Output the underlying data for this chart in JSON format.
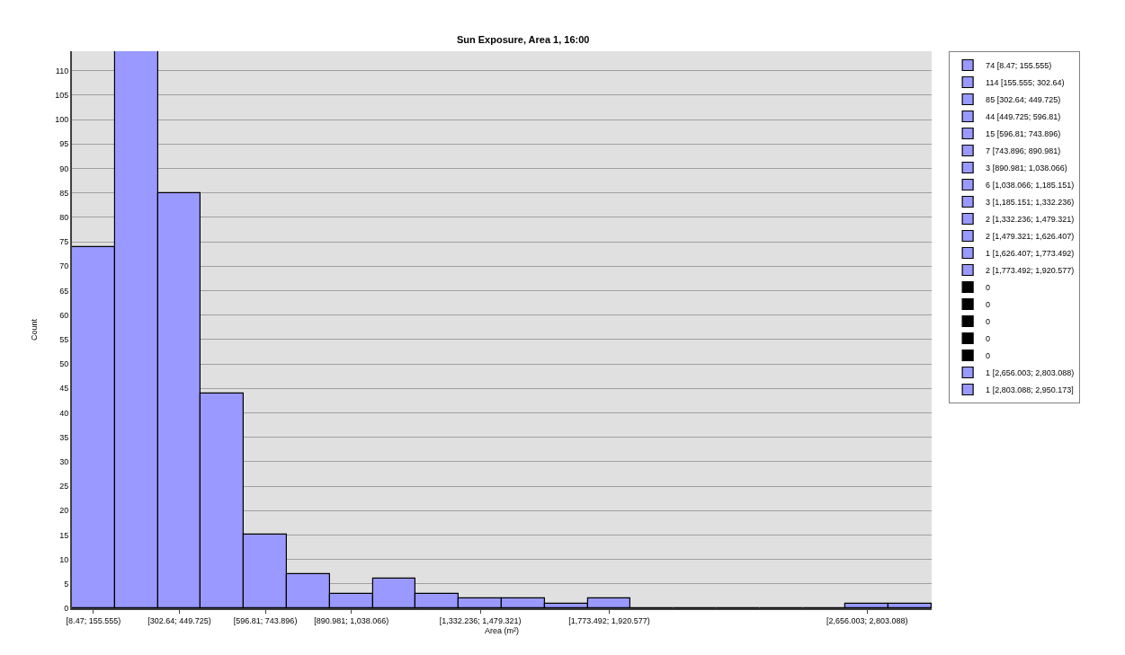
{
  "chart_data": {
    "type": "bar",
    "title": "Sun Exposure, Area 1, 16:00",
    "xlabel": "Area (m²)",
    "ylabel": "Count",
    "categories": [
      "[8.47; 155.555)",
      null,
      "[302.64; 449.725)",
      null,
      "[596.81; 743.896)",
      null,
      "[890.981; 1,038.066)",
      null,
      null,
      "[1,332.236; 1,479.321)",
      null,
      null,
      "[1,773.492; 1,920.577)",
      null,
      null,
      null,
      null,
      null,
      "[2,656.003; 2,803.088)",
      null
    ],
    "series": [
      {
        "name": "74 [8.47; 155.555)",
        "color": "#9999ff",
        "values": [
          74,
          null,
          null,
          null,
          null,
          null,
          null,
          null,
          null,
          null,
          null,
          null,
          null,
          null,
          null,
          null,
          null,
          null,
          null,
          null
        ]
      },
      {
        "name": "114 [155.555; 302.64)",
        "color": "#9999ff",
        "values": [
          null,
          114,
          null,
          null,
          null,
          null,
          null,
          null,
          null,
          null,
          null,
          null,
          null,
          null,
          null,
          null,
          null,
          null,
          null,
          null
        ]
      },
      {
        "name": "85 [302.64; 449.725)",
        "color": "#9999ff",
        "values": [
          null,
          null,
          85,
          null,
          null,
          null,
          null,
          null,
          null,
          null,
          null,
          null,
          null,
          null,
          null,
          null,
          null,
          null,
          null,
          null
        ]
      },
      {
        "name": "44 [449.725; 596.81)",
        "color": "#9999ff",
        "values": [
          null,
          null,
          null,
          44,
          null,
          null,
          null,
          null,
          null,
          null,
          null,
          null,
          null,
          null,
          null,
          null,
          null,
          null,
          null,
          null
        ]
      },
      {
        "name": "15 [596.81; 743.896)",
        "color": "#9999ff",
        "values": [
          null,
          null,
          null,
          null,
          15,
          null,
          null,
          null,
          null,
          null,
          null,
          null,
          null,
          null,
          null,
          null,
          null,
          null,
          null,
          null
        ]
      },
      {
        "name": "7 [743.896; 890.981)",
        "color": "#9999ff",
        "values": [
          null,
          null,
          null,
          null,
          null,
          7,
          null,
          null,
          null,
          null,
          null,
          null,
          null,
          null,
          null,
          null,
          null,
          null,
          null,
          null
        ]
      },
      {
        "name": "3 [890.981; 1,038.066)",
        "color": "#9999ff",
        "values": [
          null,
          null,
          null,
          null,
          null,
          null,
          3,
          null,
          null,
          null,
          null,
          null,
          null,
          null,
          null,
          null,
          null,
          null,
          null,
          null
        ]
      },
      {
        "name": "6 [1,038.066; 1,185.151)",
        "color": "#9999ff",
        "values": [
          null,
          null,
          null,
          null,
          null,
          null,
          null,
          6,
          null,
          null,
          null,
          null,
          null,
          null,
          null,
          null,
          null,
          null,
          null,
          null
        ]
      },
      {
        "name": "3 [1,185.151; 1,332.236)",
        "color": "#9999ff",
        "values": [
          null,
          null,
          null,
          null,
          null,
          null,
          null,
          null,
          3,
          null,
          null,
          null,
          null,
          null,
          null,
          null,
          null,
          null,
          null,
          null
        ]
      },
      {
        "name": "2 [1,332.236; 1,479.321)",
        "color": "#9999ff",
        "values": [
          null,
          null,
          null,
          null,
          null,
          null,
          null,
          null,
          null,
          2,
          null,
          null,
          null,
          null,
          null,
          null,
          null,
          null,
          null,
          null
        ]
      },
      {
        "name": "2 [1,479.321; 1,626.407)",
        "color": "#9999ff",
        "values": [
          null,
          null,
          null,
          null,
          null,
          null,
          null,
          null,
          null,
          null,
          2,
          null,
          null,
          null,
          null,
          null,
          null,
          null,
          null,
          null
        ]
      },
      {
        "name": "1 [1,626.407; 1,773.492)",
        "color": "#9999ff",
        "values": [
          null,
          null,
          null,
          null,
          null,
          null,
          null,
          null,
          null,
          null,
          null,
          1,
          null,
          null,
          null,
          null,
          null,
          null,
          null,
          null
        ]
      },
      {
        "name": "2 [1,773.492; 1,920.577)",
        "color": "#9999ff",
        "values": [
          null,
          null,
          null,
          null,
          null,
          null,
          null,
          null,
          null,
          null,
          null,
          null,
          2,
          null,
          null,
          null,
          null,
          null,
          null,
          null
        ]
      },
      {
        "name": "0",
        "color": "#000000",
        "values": [
          null,
          null,
          null,
          null,
          null,
          null,
          null,
          null,
          null,
          null,
          null,
          null,
          null,
          0,
          null,
          null,
          null,
          null,
          null,
          null
        ]
      },
      {
        "name": "0",
        "color": "#000000",
        "values": [
          null,
          null,
          null,
          null,
          null,
          null,
          null,
          null,
          null,
          null,
          null,
          null,
          null,
          null,
          0,
          null,
          null,
          null,
          null,
          null
        ]
      },
      {
        "name": "0",
        "color": "#000000",
        "values": [
          null,
          null,
          null,
          null,
          null,
          null,
          null,
          null,
          null,
          null,
          null,
          null,
          null,
          null,
          null,
          0,
          null,
          null,
          null,
          null
        ]
      },
      {
        "name": "0",
        "color": "#000000",
        "values": [
          null,
          null,
          null,
          null,
          null,
          null,
          null,
          null,
          null,
          null,
          null,
          null,
          null,
          null,
          null,
          null,
          0,
          null,
          null,
          null
        ]
      },
      {
        "name": "0",
        "color": "#000000",
        "values": [
          null,
          null,
          null,
          null,
          null,
          null,
          null,
          null,
          null,
          null,
          null,
          null,
          null,
          null,
          null,
          null,
          null,
          0,
          null,
          null
        ]
      },
      {
        "name": "1 [2,656.003; 2,803.088)",
        "color": "#9999ff",
        "values": [
          null,
          null,
          null,
          null,
          null,
          null,
          null,
          null,
          null,
          null,
          null,
          null,
          null,
          null,
          null,
          null,
          null,
          null,
          1,
          null
        ]
      },
      {
        "name": "1 [2,803.088; 2,950.173]",
        "color": "#9999ff",
        "values": [
          null,
          null,
          null,
          null,
          null,
          null,
          null,
          null,
          null,
          null,
          null,
          null,
          null,
          null,
          null,
          null,
          null,
          null,
          null,
          1
        ]
      }
    ],
    "ylim": [
      0,
      114
    ],
    "yticks": [
      0,
      5,
      10,
      15,
      20,
      25,
      30,
      35,
      40,
      45,
      50,
      55,
      60,
      65,
      70,
      75,
      80,
      85,
      90,
      95,
      100,
      105,
      110
    ],
    "grid": "y",
    "legend": "top right"
  }
}
